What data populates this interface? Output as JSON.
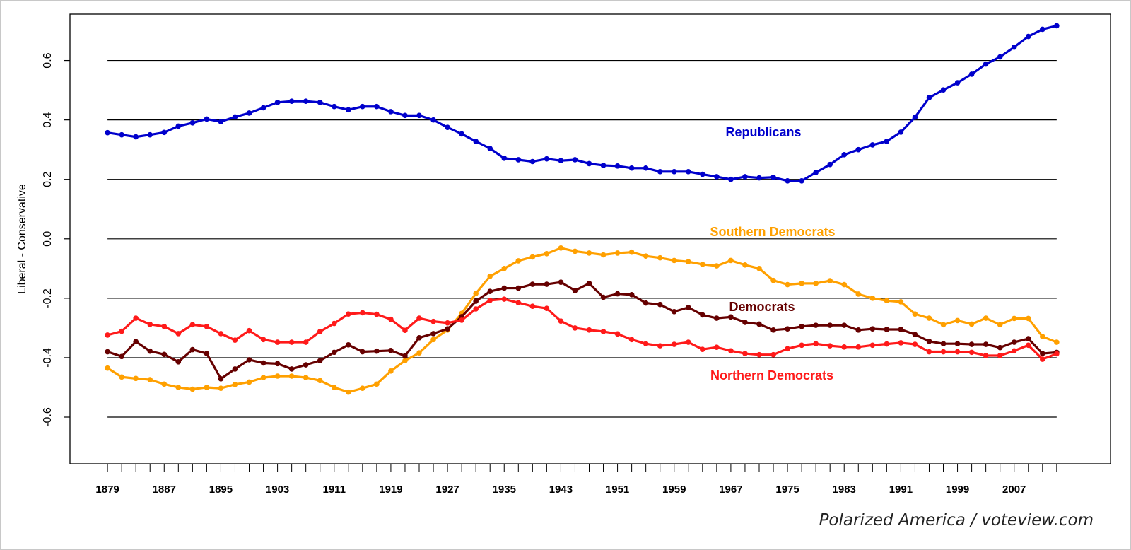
{
  "chart_data": {
    "type": "line",
    "title": "",
    "xlabel": "",
    "ylabel": "Liberal - Conservative",
    "credit": "Polarized America / voteview.com",
    "xlim": [
      1873.7,
      2020.6
    ],
    "ylim": [
      -0.757,
      0.756
    ],
    "grid": true,
    "legend": "inline labels",
    "x_tick_labels": [
      "1879",
      "1887",
      "1895",
      "1903",
      "1911",
      "1919",
      "1927",
      "1935",
      "1943",
      "1951",
      "1959",
      "1967",
      "1975",
      "1983",
      "1991",
      "1999",
      "2007"
    ],
    "y_ticks": [
      0.6,
      0.4,
      0.2,
      0.0,
      -0.2,
      -0.4,
      -0.6
    ],
    "y_tick_labels": [
      "0.6",
      "0.4",
      "0.2",
      "0.0",
      "-0.2",
      "-0.4",
      "-0.6"
    ],
    "x": [
      1879,
      1881,
      1883,
      1885,
      1887,
      1889,
      1891,
      1893,
      1895,
      1897,
      1899,
      1901,
      1903,
      1905,
      1907,
      1909,
      1911,
      1913,
      1915,
      1917,
      1919,
      1921,
      1923,
      1925,
      1927,
      1929,
      1931,
      1933,
      1935,
      1937,
      1939,
      1941,
      1943,
      1945,
      1947,
      1949,
      1951,
      1953,
      1955,
      1957,
      1959,
      1961,
      1963,
      1965,
      1967,
      1969,
      1971,
      1973,
      1975,
      1977,
      1979,
      1981,
      1983,
      1985,
      1987,
      1989,
      1991,
      1993,
      1995,
      1997,
      1999,
      2001,
      2003,
      2005,
      2007,
      2009,
      2011,
      2013
    ],
    "series": [
      {
        "name": "Republicans",
        "color": "#0000CC",
        "values": [
          0.357,
          0.35,
          0.343,
          0.35,
          0.358,
          0.379,
          0.39,
          0.403,
          0.394,
          0.41,
          0.423,
          0.441,
          0.459,
          0.463,
          0.463,
          0.459,
          0.445,
          0.434,
          0.445,
          0.445,
          0.428,
          0.415,
          0.415,
          0.4,
          0.375,
          0.353,
          0.328,
          0.304,
          0.271,
          0.266,
          0.26,
          0.269,
          0.263,
          0.266,
          0.253,
          0.247,
          0.245,
          0.238,
          0.238,
          0.226,
          0.226,
          0.226,
          0.217,
          0.209,
          0.2,
          0.209,
          0.205,
          0.207,
          0.195,
          0.195,
          0.223,
          0.25,
          0.283,
          0.3,
          0.316,
          0.328,
          0.359,
          0.409,
          0.475,
          0.501,
          0.525,
          0.554,
          0.588,
          0.612,
          0.645,
          0.681,
          0.705,
          0.717
        ]
      },
      {
        "name": "Southern Democrats",
        "color": "#FFA000",
        "values": [
          -0.435,
          -0.465,
          -0.47,
          -0.474,
          -0.489,
          -0.5,
          -0.506,
          -0.5,
          -0.503,
          -0.49,
          -0.482,
          -0.467,
          -0.462,
          -0.462,
          -0.467,
          -0.477,
          -0.5,
          -0.516,
          -0.503,
          -0.489,
          -0.445,
          -0.41,
          -0.384,
          -0.339,
          -0.307,
          -0.251,
          -0.184,
          -0.126,
          -0.1,
          -0.074,
          -0.061,
          -0.05,
          -0.031,
          -0.042,
          -0.048,
          -0.054,
          -0.048,
          -0.045,
          -0.058,
          -0.064,
          -0.073,
          -0.077,
          -0.086,
          -0.091,
          -0.073,
          -0.088,
          -0.1,
          -0.14,
          -0.154,
          -0.15,
          -0.15,
          -0.141,
          -0.154,
          -0.186,
          -0.2,
          -0.208,
          -0.212,
          -0.253,
          -0.267,
          -0.289,
          -0.275,
          -0.287,
          -0.267,
          -0.289,
          -0.268,
          -0.268,
          -0.329,
          -0.348
        ]
      },
      {
        "name": "Democrats",
        "color": "#660000",
        "values": [
          -0.38,
          -0.396,
          -0.346,
          -0.378,
          -0.389,
          -0.414,
          -0.373,
          -0.386,
          -0.471,
          -0.438,
          -0.407,
          -0.418,
          -0.42,
          -0.438,
          -0.424,
          -0.41,
          -0.382,
          -0.357,
          -0.38,
          -0.378,
          -0.376,
          -0.394,
          -0.333,
          -0.319,
          -0.303,
          -0.262,
          -0.21,
          -0.177,
          -0.166,
          -0.166,
          -0.153,
          -0.153,
          -0.146,
          -0.174,
          -0.15,
          -0.197,
          -0.185,
          -0.188,
          -0.216,
          -0.221,
          -0.245,
          -0.231,
          -0.256,
          -0.267,
          -0.263,
          -0.281,
          -0.287,
          -0.307,
          -0.303,
          -0.295,
          -0.291,
          -0.291,
          -0.291,
          -0.307,
          -0.303,
          -0.305,
          -0.305,
          -0.322,
          -0.345,
          -0.353,
          -0.353,
          -0.355,
          -0.355,
          -0.366,
          -0.348,
          -0.336,
          -0.386,
          -0.382
        ]
      },
      {
        "name": "Northern Democrats",
        "color": "#FF1A1A",
        "values": [
          -0.324,
          -0.311,
          -0.267,
          -0.288,
          -0.295,
          -0.319,
          -0.289,
          -0.295,
          -0.319,
          -0.341,
          -0.309,
          -0.339,
          -0.348,
          -0.348,
          -0.348,
          -0.312,
          -0.285,
          -0.253,
          -0.249,
          -0.254,
          -0.271,
          -0.308,
          -0.267,
          -0.278,
          -0.283,
          -0.274,
          -0.236,
          -0.207,
          -0.203,
          -0.215,
          -0.227,
          -0.234,
          -0.277,
          -0.3,
          -0.307,
          -0.312,
          -0.32,
          -0.339,
          -0.353,
          -0.36,
          -0.355,
          -0.348,
          -0.372,
          -0.365,
          -0.377,
          -0.386,
          -0.39,
          -0.39,
          -0.37,
          -0.358,
          -0.353,
          -0.36,
          -0.364,
          -0.364,
          -0.358,
          -0.354,
          -0.35,
          -0.355,
          -0.38,
          -0.38,
          -0.38,
          -0.382,
          -0.393,
          -0.393,
          -0.377,
          -0.358,
          -0.405,
          -0.387
        ]
      }
    ]
  }
}
